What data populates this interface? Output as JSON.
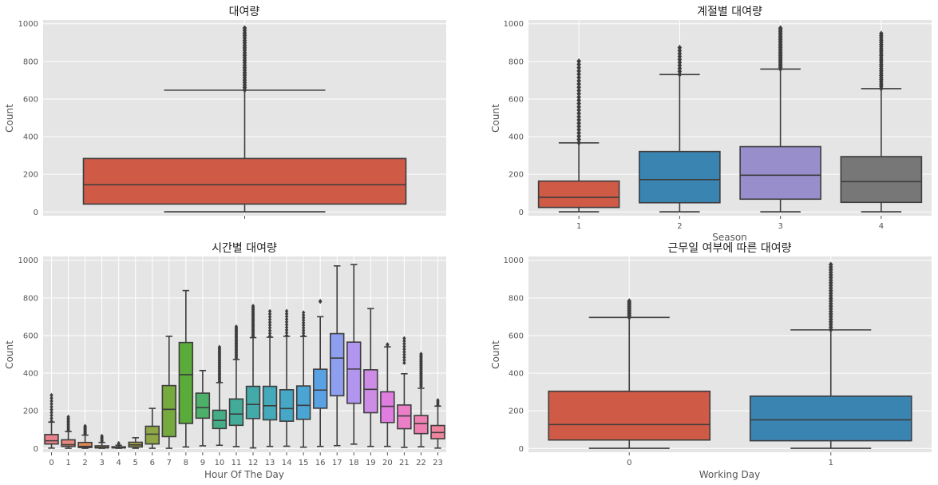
{
  "chart_data": [
    {
      "type": "box",
      "id": "overall",
      "title": "대여량",
      "xlabel": "",
      "ylabel": "Count",
      "ylim": [
        -20,
        1020
      ],
      "yticks": [
        0,
        200,
        400,
        600,
        800,
        1000
      ],
      "categories": [
        ""
      ],
      "boxes": [
        {
          "name": "",
          "color": "#cf5a46",
          "q1": 42,
          "median": 145,
          "q3": 284,
          "low": 1,
          "high": 647,
          "flier_min": 648,
          "flier_max": 977
        }
      ]
    },
    {
      "type": "box",
      "id": "season",
      "title": "계절별 대여량",
      "xlabel": "Season",
      "ylabel": "Count",
      "ylim": [
        -20,
        1020
      ],
      "yticks": [
        0,
        200,
        400,
        600,
        800,
        1000
      ],
      "categories": [
        "1",
        "2",
        "3",
        "4"
      ],
      "boxes": [
        {
          "name": "1",
          "color": "#cf5a46",
          "q1": 24,
          "median": 78,
          "q3": 164,
          "low": 1,
          "high": 367,
          "flier_min": 368,
          "flier_max": 801
        },
        {
          "name": "2",
          "color": "#3a84b2",
          "q1": 49,
          "median": 172,
          "q3": 321,
          "low": 1,
          "high": 730,
          "flier_min": 731,
          "flier_max": 873
        },
        {
          "name": "3",
          "color": "#988ecb",
          "q1": 68,
          "median": 195,
          "q3": 347,
          "low": 1,
          "high": 759,
          "flier_min": 760,
          "flier_max": 977
        },
        {
          "name": "4",
          "color": "#777777",
          "q1": 51,
          "median": 161,
          "q3": 294,
          "low": 1,
          "high": 655,
          "flier_min": 656,
          "flier_max": 948
        }
      ]
    },
    {
      "type": "box",
      "id": "hour",
      "title": "시간별 대여량",
      "xlabel": "Hour Of The Day",
      "ylabel": "Count",
      "ylim": [
        -20,
        1020
      ],
      "yticks": [
        0,
        200,
        400,
        600,
        800,
        1000
      ],
      "categories": [
        "0",
        "1",
        "2",
        "3",
        "4",
        "5",
        "6",
        "7",
        "8",
        "9",
        "10",
        "11",
        "12",
        "13",
        "14",
        "15",
        "16",
        "17",
        "18",
        "19",
        "20",
        "21",
        "22",
        "23"
      ],
      "boxes": [
        {
          "name": "0",
          "color": "#e8838c",
          "q1": 24,
          "median": 41,
          "q3": 74,
          "low": 2,
          "high": 140,
          "flier_min": 145,
          "flier_max": 283
        },
        {
          "name": "1",
          "color": "#e4897f",
          "q1": 11,
          "median": 20,
          "q3": 46,
          "low": 1,
          "high": 90,
          "flier_min": 95,
          "flier_max": 168
        },
        {
          "name": "2",
          "color": "#e18a58",
          "q1": 5,
          "median": 11,
          "q3": 32,
          "low": 1,
          "high": 71,
          "flier_min": 75,
          "flier_max": 119
        },
        {
          "name": "3",
          "color": "#d2944e",
          "q1": 3,
          "median": 6,
          "q3": 14,
          "low": 1,
          "high": 32,
          "flier_min": 35,
          "flier_max": 66
        },
        {
          "name": "4",
          "color": "#c09a4a",
          "q1": 3,
          "median": 6,
          "q3": 9,
          "low": 1,
          "high": 17,
          "flier_min": 19,
          "flier_max": 28
        },
        {
          "name": "5",
          "color": "#a7a34a",
          "q1": 8,
          "median": 19,
          "q3": 33,
          "low": 1,
          "high": 57,
          "flier_min": 0,
          "flier_max": 0
        },
        {
          "name": "6",
          "color": "#8ea646",
          "q1": 24,
          "median": 76,
          "q3": 118,
          "low": 1,
          "high": 213,
          "flier_min": 0,
          "flier_max": 0
        },
        {
          "name": "7",
          "color": "#76a93e",
          "q1": 63,
          "median": 208,
          "q3": 334,
          "low": 1,
          "high": 596,
          "flier_min": 0,
          "flier_max": 0
        },
        {
          "name": "8",
          "color": "#5aab3a",
          "q1": 133,
          "median": 392,
          "q3": 563,
          "low": 8,
          "high": 839,
          "flier_min": 0,
          "flier_max": 0
        },
        {
          "name": "9",
          "color": "#4db06a",
          "q1": 161,
          "median": 217,
          "q3": 294,
          "low": 14,
          "high": 414,
          "flier_min": 0,
          "flier_max": 0
        },
        {
          "name": "10",
          "color": "#45ad86",
          "q1": 106,
          "median": 149,
          "q3": 203,
          "low": 17,
          "high": 350,
          "flier_min": 356,
          "flier_max": 539
        },
        {
          "name": "11",
          "color": "#43ab99",
          "q1": 123,
          "median": 183,
          "q3": 263,
          "low": 10,
          "high": 473,
          "flier_min": 480,
          "flier_max": 647
        },
        {
          "name": "12",
          "color": "#43aaa9",
          "q1": 159,
          "median": 234,
          "q3": 330,
          "low": 3,
          "high": 589,
          "flier_min": 595,
          "flier_max": 757
        },
        {
          "name": "13",
          "color": "#44a9b8",
          "q1": 152,
          "median": 227,
          "q3": 330,
          "low": 11,
          "high": 591,
          "flier_min": 597,
          "flier_max": 729
        },
        {
          "name": "14",
          "color": "#46a7c6",
          "q1": 145,
          "median": 212,
          "q3": 312,
          "low": 12,
          "high": 596,
          "flier_min": 600,
          "flier_max": 730
        },
        {
          "name": "15",
          "color": "#4aa4d4",
          "q1": 155,
          "median": 229,
          "q3": 332,
          "low": 7,
          "high": 595,
          "flier_min": 600,
          "flier_max": 722
        },
        {
          "name": "16",
          "color": "#5aa1e3",
          "q1": 214,
          "median": 310,
          "q3": 421,
          "low": 11,
          "high": 700,
          "flier_min": 780,
          "flier_max": 783
        },
        {
          "name": "17",
          "color": "#8f9ff0",
          "q1": 280,
          "median": 480,
          "q3": 610,
          "low": 15,
          "high": 970,
          "flier_min": 0,
          "flier_max": 0
        },
        {
          "name": "18",
          "color": "#b295ee",
          "q1": 240,
          "median": 422,
          "q3": 565,
          "low": 23,
          "high": 977,
          "flier_min": 0,
          "flier_max": 0
        },
        {
          "name": "19",
          "color": "#cd8de7",
          "q1": 190,
          "median": 314,
          "q3": 418,
          "low": 11,
          "high": 743,
          "flier_min": 0,
          "flier_max": 0
        },
        {
          "name": "20",
          "color": "#e07de0",
          "q1": 138,
          "median": 224,
          "q3": 301,
          "low": 11,
          "high": 540,
          "flier_min": 550,
          "flier_max": 553
        },
        {
          "name": "21",
          "color": "#ea7fc8",
          "q1": 105,
          "median": 173,
          "q3": 231,
          "low": 6,
          "high": 397,
          "flier_min": 455,
          "flier_max": 585
        },
        {
          "name": "22",
          "color": "#ef81b2",
          "q1": 79,
          "median": 132,
          "q3": 175,
          "low": 9,
          "high": 320,
          "flier_min": 330,
          "flier_max": 502
        },
        {
          "name": "23",
          "color": "#ee849e",
          "q1": 52,
          "median": 85,
          "q3": 122,
          "low": 2,
          "high": 225,
          "flier_min": 230,
          "flier_max": 256
        }
      ]
    },
    {
      "type": "box",
      "id": "workingday",
      "title": "근무일 여부에 따른 대여량",
      "xlabel": "Working Day",
      "ylabel": "Count",
      "ylim": [
        -20,
        1020
      ],
      "yticks": [
        0,
        200,
        400,
        600,
        800,
        1000
      ],
      "categories": [
        "0",
        "1"
      ],
      "boxes": [
        {
          "name": "0",
          "color": "#cf5a46",
          "q1": 45,
          "median": 127,
          "q3": 304,
          "low": 1,
          "high": 696,
          "flier_min": 697,
          "flier_max": 783
        },
        {
          "name": "1",
          "color": "#3a84b2",
          "q1": 41,
          "median": 152,
          "q3": 278,
          "low": 1,
          "high": 630,
          "flier_min": 631,
          "flier_max": 977
        }
      ]
    }
  ]
}
